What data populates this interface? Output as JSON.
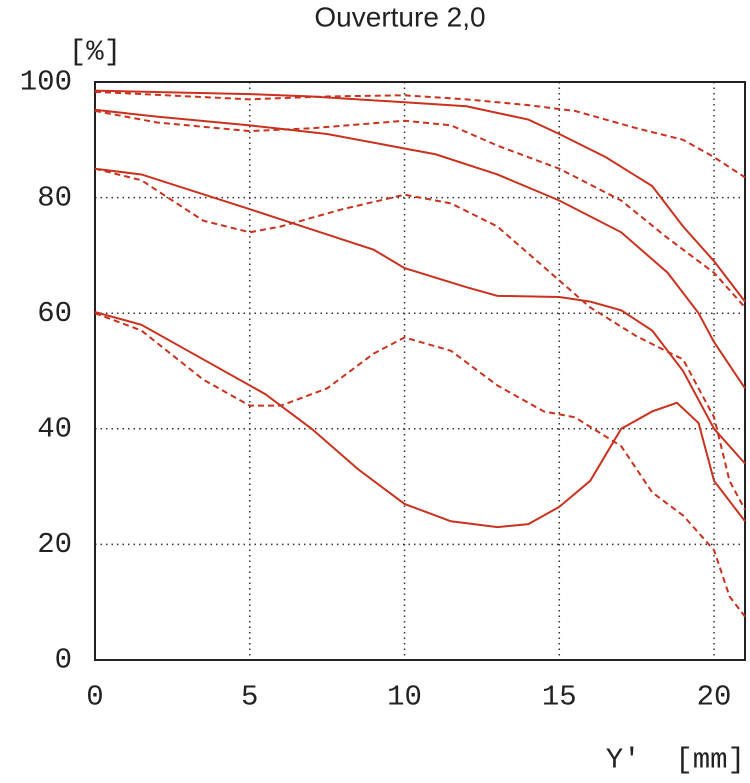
{
  "chart_data": {
    "type": "line",
    "title": "Ouverture 2,0",
    "y_label": "[%]",
    "x_label": "Y'  [mm]",
    "xlim": [
      0,
      21
    ],
    "xticks": [
      0,
      5,
      10,
      15,
      20
    ],
    "ylim": [
      0,
      100
    ],
    "yticks": [
      0,
      20,
      40,
      60,
      80,
      100
    ],
    "grid": true,
    "series": [
      {
        "color": "#c8321e",
        "dashed": false,
        "x": [
          0,
          5,
          7,
          10,
          12,
          14,
          15,
          16.5,
          18,
          19,
          20,
          21
        ],
        "values": [
          98.5,
          97.9,
          97.5,
          96.5,
          95.8,
          93.5,
          91,
          87,
          82,
          75,
          69,
          62
        ]
      },
      {
        "color": "#c8321e",
        "dashed": true,
        "x": [
          0,
          5,
          7.5,
          10,
          12,
          14,
          15.5,
          17.5,
          19,
          20,
          21
        ],
        "values": [
          98.3,
          97,
          97.5,
          97.7,
          97,
          96,
          95,
          92,
          90,
          87,
          83.5
        ]
      },
      {
        "color": "#c8321e",
        "dashed": false,
        "x": [
          0,
          2,
          5,
          7.5,
          10,
          11,
          13,
          15,
          17,
          18.5,
          19.5,
          20,
          21
        ],
        "values": [
          95.2,
          94,
          92.5,
          91,
          88.5,
          87.5,
          84,
          79.5,
          74,
          67,
          60,
          55,
          47
        ]
      },
      {
        "color": "#c8321e",
        "dashed": true,
        "x": [
          0,
          2,
          5,
          7,
          10,
          11.5,
          13,
          15,
          17,
          18.5,
          20,
          21
        ],
        "values": [
          95,
          93,
          91.5,
          92,
          93.3,
          92.5,
          89,
          85,
          79.5,
          73,
          67,
          61
        ]
      },
      {
        "color": "#c8321e",
        "dashed": false,
        "x": [
          0,
          1.5,
          5,
          7,
          9,
          10,
          12,
          13,
          15,
          16,
          17,
          18,
          19,
          20,
          21
        ],
        "values": [
          85,
          84,
          78,
          74.5,
          71,
          67.8,
          64.5,
          63,
          62.8,
          62,
          60.5,
          57,
          50,
          40,
          34
        ]
      },
      {
        "color": "#c8321e",
        "dashed": true,
        "x": [
          0,
          1.5,
          3.5,
          5,
          6,
          8,
          10,
          11.5,
          13,
          14.5,
          16,
          17.5,
          19,
          20,
          20.5,
          21
        ],
        "values": [
          85,
          83,
          76,
          74,
          75,
          78,
          80.5,
          79,
          75,
          68,
          61,
          56,
          52,
          42,
          31,
          26
        ]
      },
      {
        "color": "#c8321e",
        "dashed": false,
        "x": [
          0,
          1.5,
          3.5,
          5.5,
          7,
          8.5,
          10,
          11.5,
          13,
          14,
          15,
          16,
          17,
          18,
          18.8,
          19.5,
          20,
          21
        ],
        "values": [
          60.2,
          58,
          52,
          46,
          40,
          33,
          27,
          24,
          23,
          23.5,
          26.5,
          31,
          40,
          43,
          44.5,
          41,
          31,
          24
        ]
      },
      {
        "color": "#c8321e",
        "dashed": true,
        "x": [
          0,
          1.5,
          3.5,
          5,
          6,
          7.5,
          9,
          10,
          11.5,
          13,
          14.5,
          15.5,
          17,
          18,
          19,
          20,
          20.5,
          21
        ],
        "values": [
          60,
          57,
          48.5,
          44,
          44,
          47,
          53,
          55.8,
          53.5,
          47.5,
          43,
          42,
          37,
          29,
          25,
          19,
          11,
          7.5
        ]
      }
    ]
  }
}
